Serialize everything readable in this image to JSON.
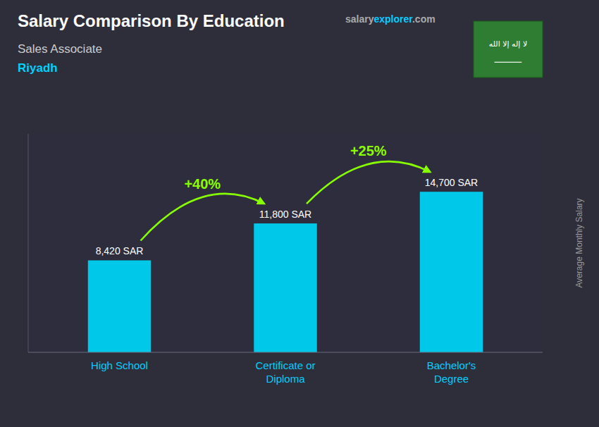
{
  "chart_data": {
    "type": "bar",
    "title": "Salary Comparison By Education",
    "subtitle": "Sales Associate",
    "city": "Riyadh",
    "ylabel": "Average Monthly Salary",
    "categories": [
      "High School",
      "Certificate or\nDiploma",
      "Bachelor's\nDegree"
    ],
    "values": [
      8420,
      11800,
      14700
    ],
    "value_labels": [
      "8,420 SAR",
      "11,800 SAR",
      "14,700 SAR"
    ],
    "data_labels": true,
    "annotations": [
      "+40%",
      "+25%"
    ],
    "website": [
      "salary",
      "explorer",
      ".com"
    ],
    "flag_text": [
      "لا إله إلا الله",
      "⸻"
    ],
    "color": "#00c8e8",
    "ylim": [
      0,
      20000
    ],
    "tick_labels": "x",
    "grid": false
  }
}
